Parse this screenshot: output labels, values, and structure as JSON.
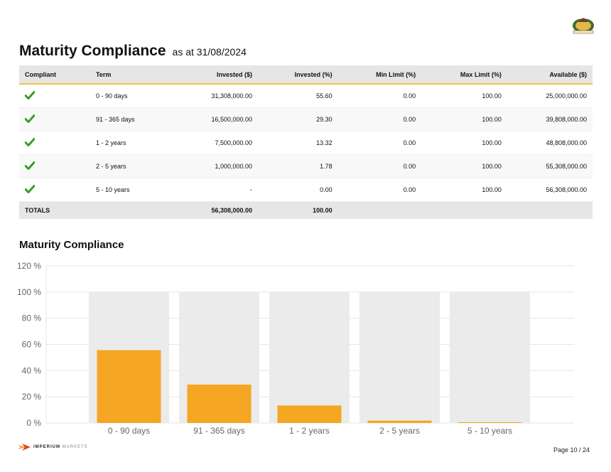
{
  "header": {
    "title": "Maturity Compliance",
    "subtitle": "as at 31/08/2024"
  },
  "table": {
    "columns": [
      "Compliant",
      "Term",
      "Invested ($)",
      "Invested (%)",
      "Min Limit (%)",
      "Max Limit (%)",
      "Available ($)"
    ],
    "rows": [
      {
        "compliant": "check-icon",
        "term": "0 - 90 days",
        "invested": "31,308,000.00",
        "invested_pct": "55.60",
        "min": "0.00",
        "max": "100.00",
        "available": "25,000,000.00"
      },
      {
        "compliant": "check-icon",
        "term": "91 - 365 days",
        "invested": "16,500,000.00",
        "invested_pct": "29.30",
        "min": "0.00",
        "max": "100.00",
        "available": "39,808,000.00"
      },
      {
        "compliant": "check-icon",
        "term": "1 - 2 years",
        "invested": "7,500,000.00",
        "invested_pct": "13.32",
        "min": "0.00",
        "max": "100.00",
        "available": "48,808,000.00"
      },
      {
        "compliant": "check-icon",
        "term": "2 - 5 years",
        "invested": "1,000,000.00",
        "invested_pct": "1.78",
        "min": "0.00",
        "max": "100.00",
        "available": "55,308,000.00"
      },
      {
        "compliant": "check-icon",
        "term": "5 - 10 years",
        "invested": "-",
        "invested_pct": "0.00",
        "min": "0.00",
        "max": "100.00",
        "available": "56,308,000.00"
      }
    ],
    "totals": {
      "label": "TOTALS",
      "invested": "56,308,000.00",
      "invested_pct": "100.00"
    }
  },
  "chart_section_title": "Maturity Compliance",
  "chart_data": {
    "type": "bar",
    "categories": [
      "0 - 90 days",
      "91 - 365 days",
      "1 - 2 years",
      "2 - 5 years",
      "5 - 10 years"
    ],
    "series": [
      {
        "values": [
          55.6,
          29.3,
          13.32,
          1.78,
          0.0
        ],
        "color": "#f5a623"
      }
    ],
    "max_limits": [
      100,
      100,
      100,
      100,
      100
    ],
    "min_limits": [
      0,
      0,
      0,
      0,
      0
    ],
    "ylim": [
      0,
      120
    ],
    "yticks": [
      0,
      20,
      40,
      60,
      80,
      100,
      120
    ],
    "ytick_labels": [
      "0 %",
      "20 %",
      "40 %",
      "60 %",
      "80 %",
      "100 %",
      "120 %"
    ],
    "grid": true,
    "limit_band_color": "#ebebeb"
  },
  "footer": {
    "brand": "IMPERIUM",
    "brand_suffix": "MARKETS",
    "page": "Page 10 / 24"
  },
  "colors": {
    "accent": "#f5a623",
    "check": "#3a9b2c",
    "header_bg": "#e6e6e6",
    "header_border": "#f4c542"
  }
}
